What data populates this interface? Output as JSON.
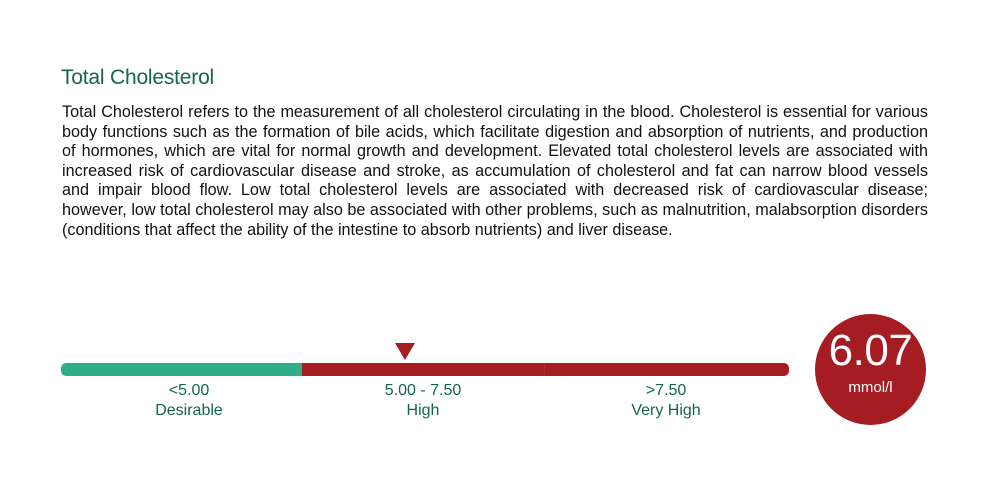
{
  "title": "Total Cholesterol",
  "description": "Total Cholesterol refers to the measurement of all cholesterol circulating in the blood. Cholesterol is essential for various body functions such as the formation of bile acids, which facilitate digestion and absorption of nutrients, and production of hormones, which are vital for normal growth and development. Elevated total cholesterol levels are associated with increased risk of cardiovascular disease and stroke, as accumulation of cholesterol and fat can narrow blood vessels and impair blood flow. Low total cholesterol levels are associated with decreased risk of cardiovascular disease; however, low total cholesterol may also be associated with other problems, such as malnutrition, malabsorption disorders (conditions that affect the ability of the intestine to absorb nutrients) and liver disease.",
  "gauge": {
    "ranges": [
      {
        "range": "<5.00",
        "category": "Desirable",
        "color": "#2fae89"
      },
      {
        "range": "5.00 - 7.50",
        "category": "High",
        "color": "#a61c23"
      },
      {
        "range": ">7.50",
        "category": "Very High",
        "color": "#a61c23"
      }
    ],
    "marker_color": "#a61c23"
  },
  "result": {
    "value": "6.07",
    "unit": "mmol/l",
    "status": "High",
    "color": "#a61c23"
  },
  "colors": {
    "title": "#14644f",
    "text": "#111111",
    "desirable": "#2fae89",
    "high": "#a61c23"
  }
}
